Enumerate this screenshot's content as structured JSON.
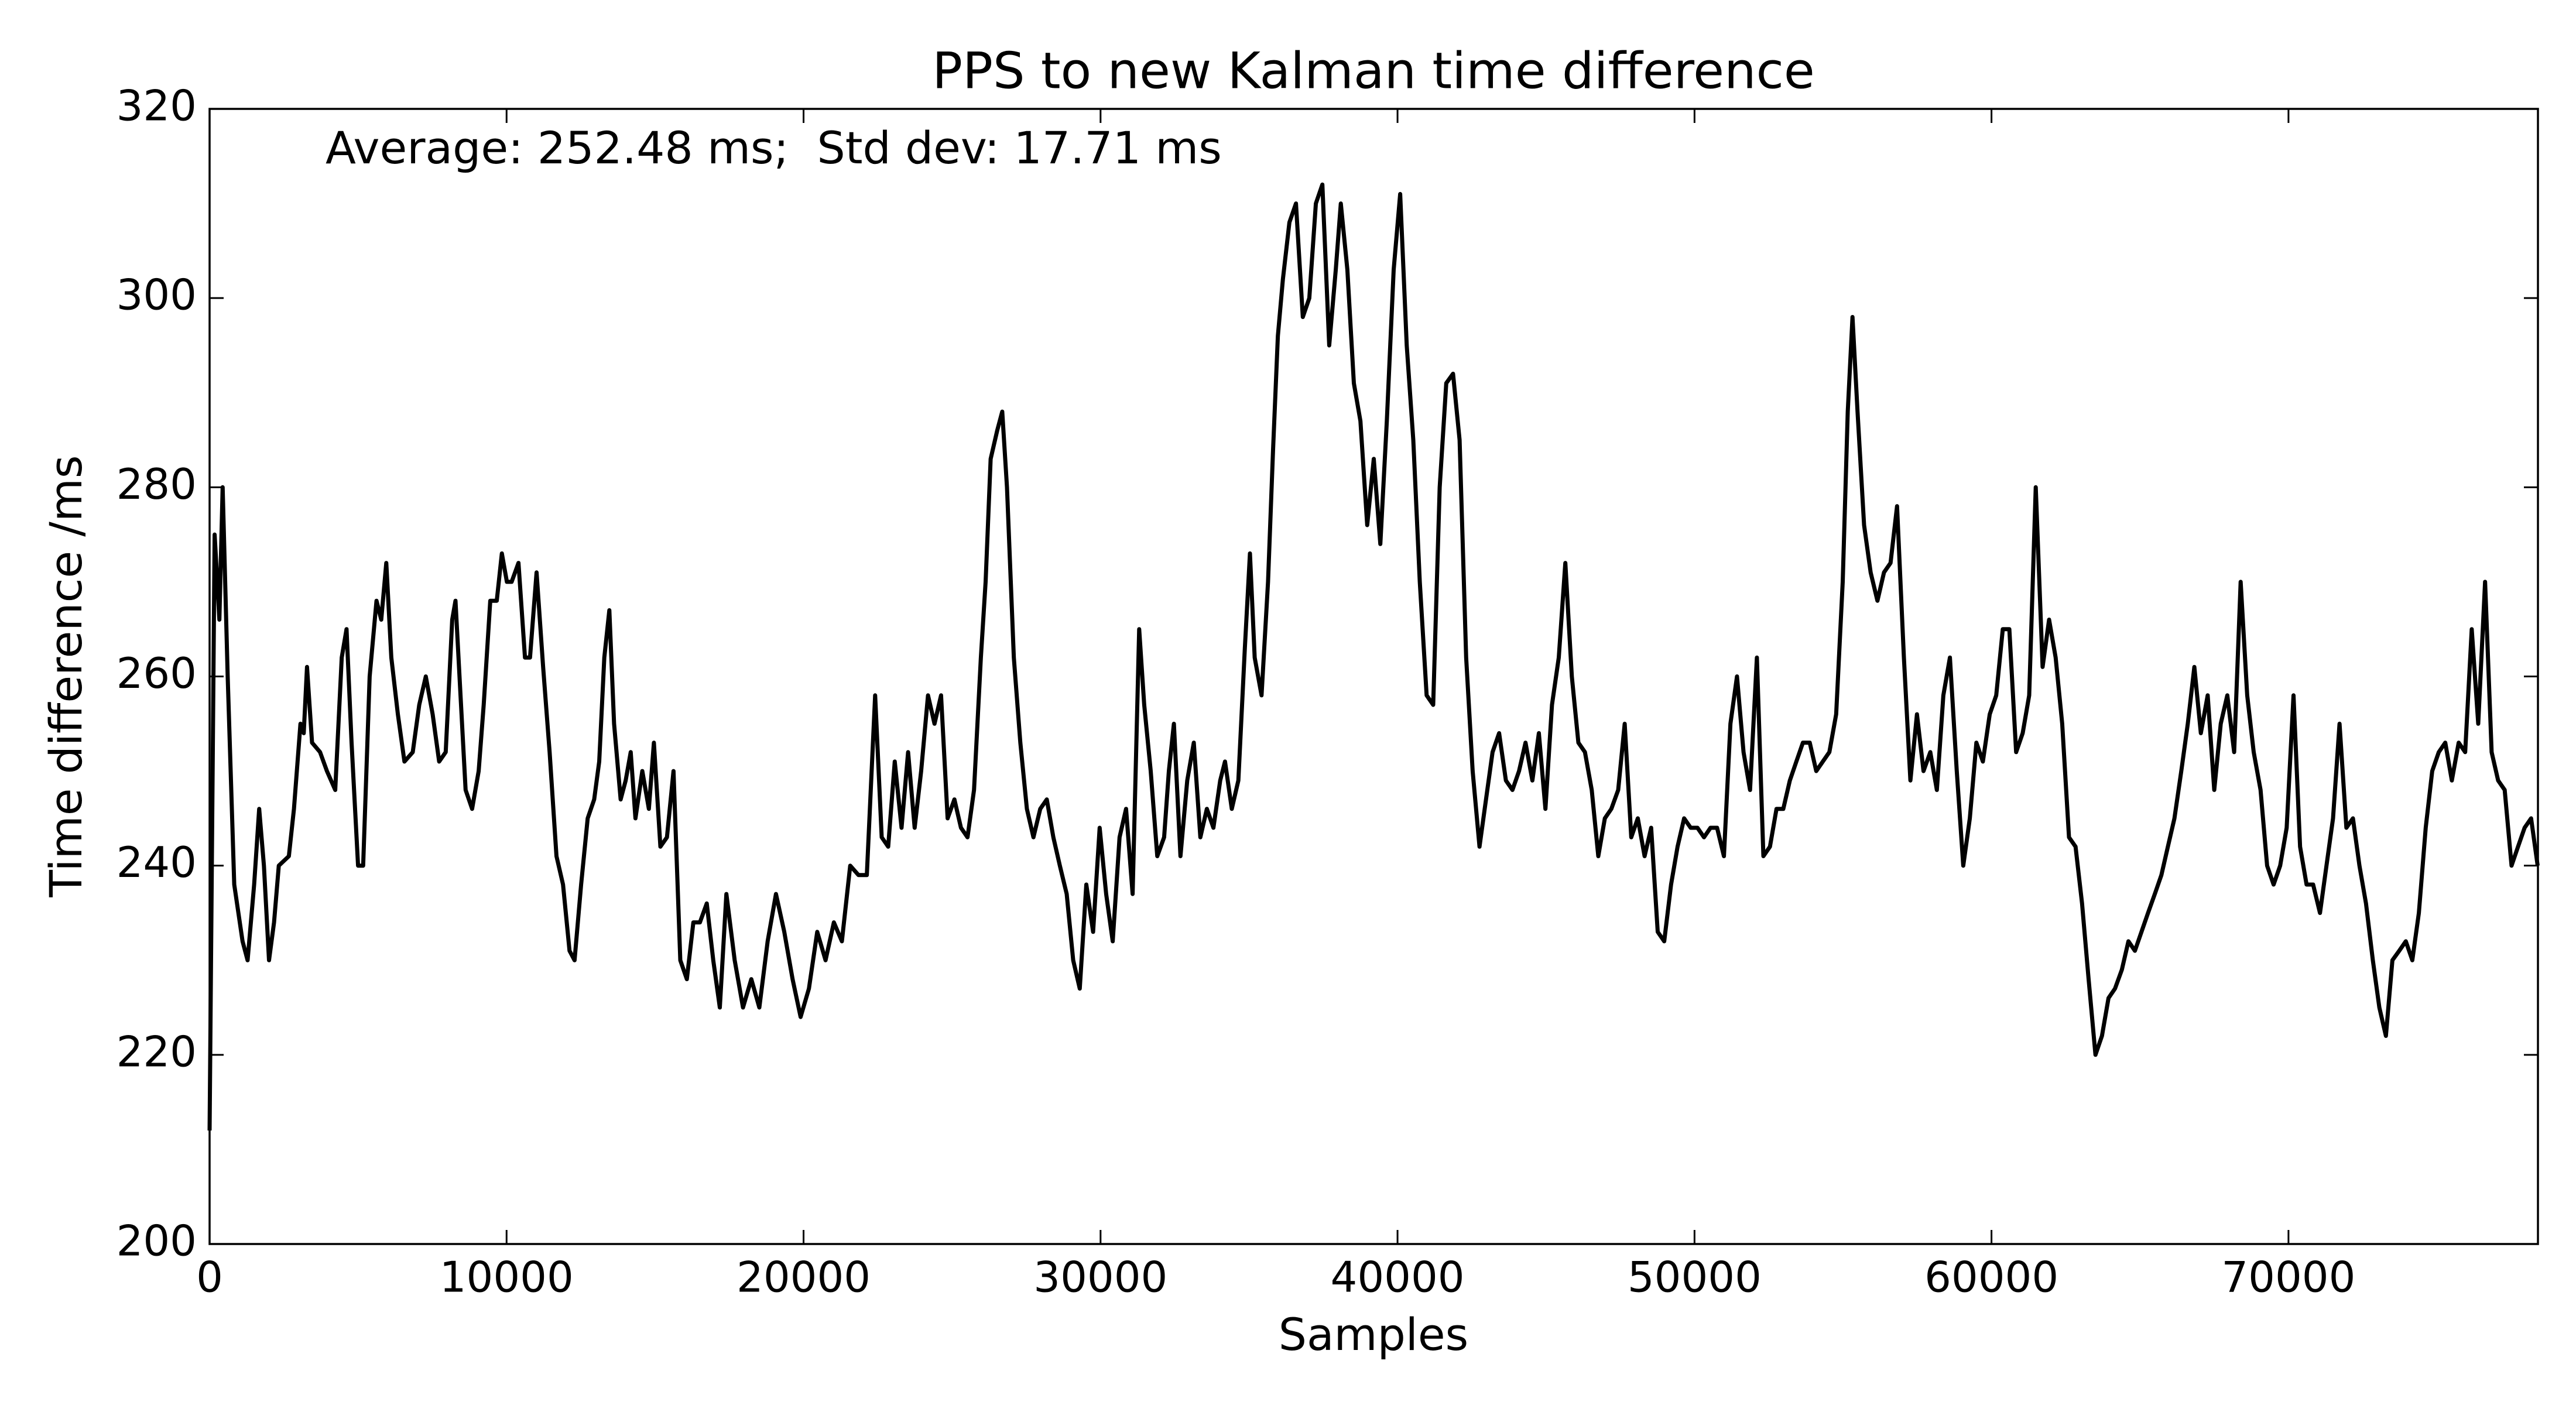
{
  "chart_data": {
    "type": "line",
    "title": "PPS to new Kalman time difference",
    "annotation": "Average: 252.48 ms;  Std dev: 17.71 ms",
    "x_label": "Samples",
    "y_label": "Time difference /ms",
    "color": "#000000",
    "xlim": [
      0,
      78400
    ],
    "ylim": [
      200,
      320
    ],
    "xticks": [
      0,
      10000,
      20000,
      30000,
      40000,
      50000,
      60000,
      70000
    ],
    "yticks": [
      200,
      220,
      240,
      260,
      280,
      300,
      320
    ],
    "x": [
      0,
      170,
      330,
      440,
      610,
      830,
      1110,
      1280,
      1500,
      1670,
      1830,
      2000,
      2170,
      2330,
      2670,
      2840,
      3060,
      3170,
      3280,
      3450,
      3720,
      3950,
      4230,
      4450,
      4610,
      4780,
      5000,
      5170,
      5390,
      5620,
      5780,
      5950,
      6120,
      6340,
      6560,
      6840,
      7060,
      7280,
      7510,
      7730,
      7950,
      8170,
      8280,
      8450,
      8620,
      8840,
      9060,
      9230,
      9450,
      9670,
      9840,
      10010,
      10170,
      10400,
      10620,
      10790,
      11010,
      11230,
      11450,
      11680,
      11900,
      12120,
      12290,
      12510,
      12730,
      12950,
      13120,
      13290,
      13460,
      13620,
      13840,
      14010,
      14180,
      14340,
      14570,
      14790,
      14960,
      15180,
      15400,
      15620,
      15850,
      16070,
      16290,
      16510,
      16740,
      16960,
      17180,
      17400,
      17680,
      17960,
      18240,
      18510,
      18790,
      19070,
      19350,
      19630,
      19900,
      20180,
      20460,
      20740,
      21020,
      21290,
      21570,
      21850,
      22130,
      22410,
      22630,
      22850,
      23070,
      23300,
      23520,
      23740,
      23960,
      24190,
      24410,
      24630,
      24850,
      25080,
      25300,
      25520,
      25740,
      25970,
      26130,
      26300,
      26520,
      26690,
      26850,
      27080,
      27300,
      27520,
      27740,
      27970,
      28190,
      28410,
      28630,
      28860,
      29080,
      29300,
      29520,
      29750,
      29970,
      30190,
      30410,
      30640,
      30860,
      31080,
      31300,
      31470,
      31690,
      31910,
      32140,
      32300,
      32470,
      32690,
      32920,
      33140,
      33360,
      33580,
      33800,
      34030,
      34190,
      34420,
      34640,
      34860,
      35030,
      35190,
      35420,
      35640,
      35810,
      35970,
      36140,
      36360,
      36580,
      36810,
      37030,
      37250,
      37470,
      37700,
      37920,
      38090,
      38310,
      38530,
      38750,
      38980,
      39200,
      39420,
      39640,
      39870,
      40090,
      40310,
      40530,
      40750,
      40980,
      41200,
      41420,
      41640,
      41870,
      42090,
      42310,
      42530,
      42760,
      42980,
      43200,
      43420,
      43650,
      43870,
      44090,
      44310,
      44540,
      44760,
      44980,
      45200,
      45430,
      45650,
      45870,
      46090,
      46310,
      46540,
      46760,
      46980,
      47200,
      47430,
      47650,
      47870,
      48090,
      48320,
      48540,
      48760,
      48980,
      49210,
      49430,
      49650,
      49870,
      50100,
      50320,
      50540,
      50760,
      50990,
      51210,
      51430,
      51650,
      51870,
      52100,
      52320,
      52540,
      52760,
      52990,
      53210,
      53430,
      53650,
      53880,
      54100,
      54320,
      54540,
      54770,
      54990,
      55160,
      55320,
      55490,
      55710,
      55930,
      56160,
      56380,
      56600,
      56820,
      57050,
      57270,
      57490,
      57710,
      57940,
      58160,
      58380,
      58600,
      58830,
      59050,
      59270,
      59490,
      59710,
      59940,
      60160,
      60380,
      60600,
      60830,
      61050,
      61270,
      61490,
      61720,
      61940,
      62160,
      62380,
      62610,
      62830,
      63050,
      63270,
      63500,
      63720,
      63940,
      64160,
      64390,
      64610,
      64830,
      65050,
      65270,
      65500,
      65720,
      65940,
      66160,
      66390,
      66610,
      66830,
      67050,
      67280,
      67500,
      67720,
      67940,
      68170,
      68390,
      68610,
      68830,
      69060,
      69280,
      69500,
      69720,
      69940,
      70170,
      70390,
      70610,
      70830,
      71060,
      71280,
      71500,
      71720,
      71950,
      72170,
      72390,
      72610,
      72840,
      73060,
      73280,
      73500,
      73730,
      73950,
      74170,
      74390,
      74620,
      74840,
      75060,
      75280,
      75500,
      75730,
      75950,
      76170,
      76390,
      76620,
      76840,
      77060,
      77280,
      77510,
      77730,
      77950,
      78170,
      78390
    ],
    "values": [
      212,
      275,
      266,
      280,
      260,
      238,
      232,
      230,
      238,
      246,
      240,
      230,
      234,
      240,
      241,
      246,
      255,
      254,
      261,
      253,
      252,
      250,
      248,
      262,
      265,
      253,
      240,
      240,
      260,
      268,
      266,
      272,
      262,
      256,
      251,
      252,
      257,
      260,
      256,
      251,
      252,
      266,
      268,
      258,
      248,
      246,
      250,
      257,
      268,
      268,
      273,
      270,
      270,
      272,
      262,
      262,
      271,
      261,
      252,
      241,
      238,
      231,
      230,
      238,
      245,
      247,
      251,
      262,
      267,
      255,
      247,
      249,
      252,
      245,
      250,
      246,
      253,
      242,
      243,
      250,
      230,
      228,
      234,
      234,
      236,
      230,
      225,
      237,
      230,
      225,
      228,
      225,
      232,
      237,
      233,
      228,
      224,
      227,
      233,
      230,
      234,
      232,
      240,
      239,
      239,
      258,
      243,
      242,
      251,
      244,
      252,
      244,
      250,
      258,
      255,
      258,
      245,
      247,
      244,
      243,
      248,
      262,
      270,
      283,
      286,
      288,
      280,
      262,
      253,
      246,
      243,
      246,
      247,
      243,
      240,
      237,
      230,
      227,
      238,
      233,
      244,
      237,
      232,
      243,
      246,
      237,
      265,
      257,
      250,
      241,
      243,
      250,
      255,
      241,
      249,
      253,
      243,
      246,
      244,
      249,
      251,
      246,
      249,
      263,
      273,
      262,
      258,
      270,
      284,
      296,
      302,
      308,
      310,
      298,
      300,
      310,
      312,
      295,
      303,
      310,
      303,
      291,
      287,
      276,
      283,
      274,
      287,
      303,
      311,
      295,
      285,
      270,
      258,
      257,
      280,
      291,
      292,
      285,
      262,
      250,
      242,
      247,
      252,
      254,
      249,
      248,
      250,
      253,
      249,
      254,
      246,
      257,
      262,
      272,
      260,
      253,
      252,
      248,
      241,
      245,
      246,
      248,
      255,
      243,
      245,
      241,
      244,
      233,
      232,
      238,
      242,
      245,
      244,
      244,
      243,
      244,
      244,
      241,
      255,
      260,
      252,
      248,
      262,
      241,
      242,
      246,
      246,
      249,
      251,
      253,
      253,
      250,
      251,
      252,
      256,
      270,
      288,
      298,
      288,
      276,
      271,
      268,
      271,
      272,
      278,
      262,
      249,
      256,
      250,
      252,
      248,
      258,
      262,
      250,
      240,
      245,
      253,
      251,
      256,
      258,
      265,
      265,
      252,
      254,
      258,
      280,
      261,
      266,
      262,
      255,
      243,
      242,
      236,
      228,
      220,
      222,
      226,
      227,
      229,
      232,
      231,
      233,
      235,
      237,
      239,
      242,
      245,
      250,
      255,
      261,
      254,
      258,
      248,
      255,
      258,
      252,
      270,
      258,
      252,
      248,
      240,
      238,
      240,
      244,
      258,
      242,
      238,
      238,
      235,
      240,
      245,
      255,
      244,
      245,
      240,
      236,
      230,
      225,
      222,
      230,
      231,
      232,
      230,
      235,
      244,
      250,
      252,
      253,
      249,
      253,
      252,
      265,
      255,
      270,
      252,
      249,
      248,
      240,
      242,
      244,
      245,
      240
    ]
  }
}
